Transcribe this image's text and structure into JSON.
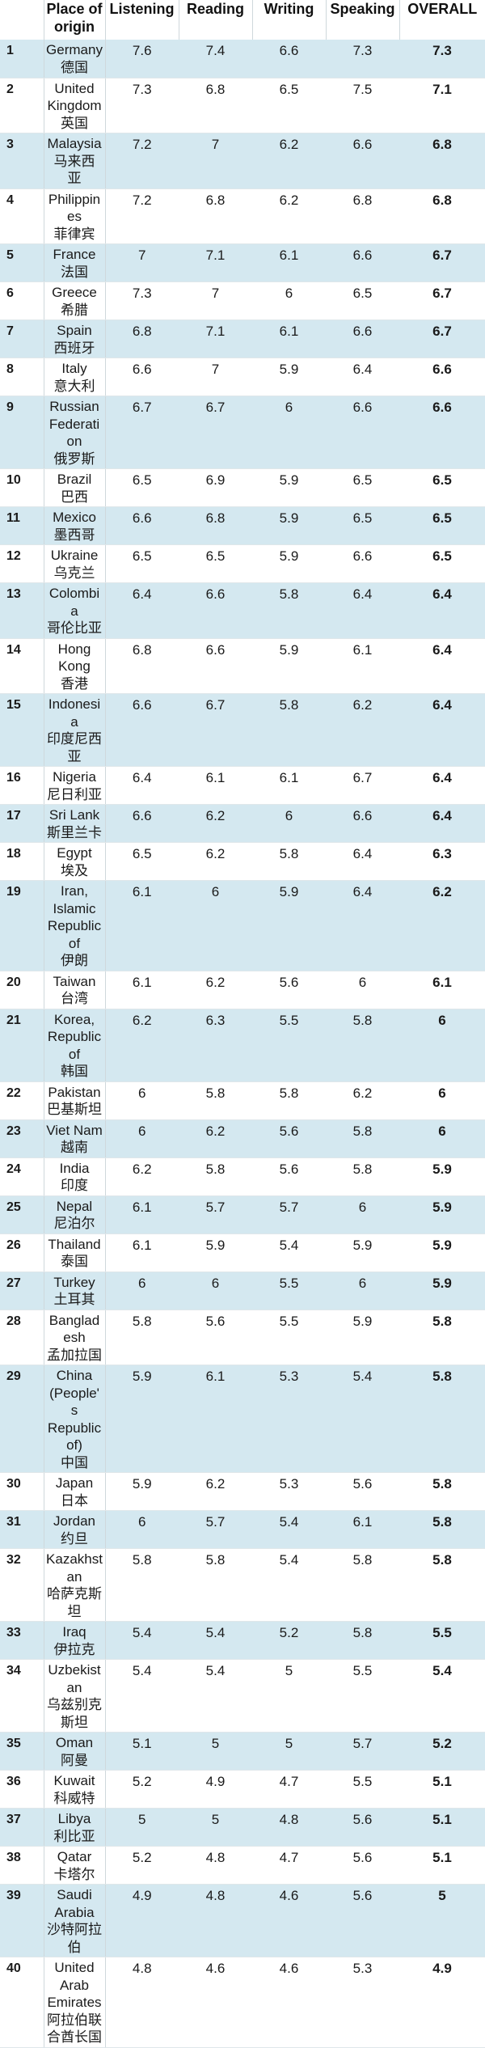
{
  "headers": {
    "rank": "",
    "place": "Place of origin",
    "listening": "Listening",
    "reading": "Reading",
    "writing": "Writing",
    "speaking": "Speaking",
    "overall": "OVERALL"
  },
  "rows": [
    {
      "rank": "1",
      "lines": [
        "Germany",
        "德国"
      ],
      "l": "7.6",
      "r": "7.4",
      "w": "6.6",
      "s": "7.3",
      "o": "7.3"
    },
    {
      "rank": "2",
      "lines": [
        "United",
        "Kingdom",
        "英国"
      ],
      "l": "7.3",
      "r": "6.8",
      "w": "6.5",
      "s": "7.5",
      "o": "7.1"
    },
    {
      "rank": "3",
      "lines": [
        "Malaysia",
        "马来西",
        "亚"
      ],
      "l": "7.2",
      "r": "7",
      "w": "6.2",
      "s": "6.6",
      "o": "6.8"
    },
    {
      "rank": "4",
      "lines": [
        "Philippin",
        "es",
        "菲律宾"
      ],
      "l": "7.2",
      "r": "6.8",
      "w": "6.2",
      "s": "6.8",
      "o": "6.8"
    },
    {
      "rank": "5",
      "lines": [
        "France",
        "法国"
      ],
      "l": "7",
      "r": "7.1",
      "w": "6.1",
      "s": "6.6",
      "o": "6.7"
    },
    {
      "rank": "6",
      "lines": [
        "Greece",
        "希腊"
      ],
      "l": "7.3",
      "r": "7",
      "w": "6",
      "s": "6.5",
      "o": "6.7"
    },
    {
      "rank": "7",
      "lines": [
        "Spain",
        "西班牙"
      ],
      "l": "6.8",
      "r": "7.1",
      "w": "6.1",
      "s": "6.6",
      "o": "6.7"
    },
    {
      "rank": "8",
      "lines": [
        "Italy",
        "意大利"
      ],
      "l": "6.6",
      "r": "7",
      "w": "5.9",
      "s": "6.4",
      "o": "6.6"
    },
    {
      "rank": "9",
      "lines": [
        "Russian",
        "Federati",
        "on",
        "俄罗斯"
      ],
      "l": "6.7",
      "r": "6.7",
      "w": "6",
      "s": "6.6",
      "o": "6.6"
    },
    {
      "rank": "10",
      "lines": [
        "Brazil",
        "巴西"
      ],
      "l": "6.5",
      "r": "6.9",
      "w": "5.9",
      "s": "6.5",
      "o": "6.5"
    },
    {
      "rank": "11",
      "lines": [
        "Mexico",
        "墨西哥"
      ],
      "l": "6.6",
      "r": "6.8",
      "w": "5.9",
      "s": "6.5",
      "o": "6.5"
    },
    {
      "rank": "12",
      "lines": [
        "Ukraine",
        "乌克兰"
      ],
      "l": "6.5",
      "r": "6.5",
      "w": "5.9",
      "s": "6.6",
      "o": "6.5"
    },
    {
      "rank": "13",
      "lines": [
        "Colombi",
        "a",
        "哥伦比亚"
      ],
      "l": "6.4",
      "r": "6.6",
      "w": "5.8",
      "s": "6.4",
      "o": "6.4"
    },
    {
      "rank": "14",
      "lines": [
        "Hong",
        "Kong",
        "香港"
      ],
      "l": "6.8",
      "r": "6.6",
      "w": "5.9",
      "s": "6.1",
      "o": "6.4"
    },
    {
      "rank": "15",
      "lines": [
        "Indonesi",
        "a",
        "印度尼西",
        "亚"
      ],
      "l": "6.6",
      "r": "6.7",
      "w": "5.8",
      "s": "6.2",
      "o": "6.4"
    },
    {
      "rank": "16",
      "lines": [
        "Nigeria",
        "尼日利亚"
      ],
      "l": "6.4",
      "r": "6.1",
      "w": "6.1",
      "s": "6.7",
      "o": "6.4"
    },
    {
      "rank": "17",
      "lines": [
        "Sri Lank",
        "斯里兰卡"
      ],
      "l": "6.6",
      "r": "6.2",
      "w": "6",
      "s": "6.6",
      "o": "6.4"
    },
    {
      "rank": "18",
      "lines": [
        "Egypt",
        "埃及"
      ],
      "l": "6.5",
      "r": "6.2",
      "w": "5.8",
      "s": "6.4",
      "o": "6.3"
    },
    {
      "rank": "19",
      "lines": [
        "Iran,",
        "Islamic",
        "Republic",
        "of",
        "伊朗"
      ],
      "l": "6.1",
      "r": "6",
      "w": "5.9",
      "s": "6.4",
      "o": "6.2"
    },
    {
      "rank": "20",
      "lines": [
        "Taiwan",
        "台湾"
      ],
      "l": "6.1",
      "r": "6.2",
      "w": "5.6",
      "s": "6",
      "o": "6.1"
    },
    {
      "rank": "21",
      "lines": [
        "Korea,",
        "Republic",
        "of",
        "韩国"
      ],
      "l": "6.2",
      "r": "6.3",
      "w": "5.5",
      "s": "5.8",
      "o": "6"
    },
    {
      "rank": "22",
      "lines": [
        "Pakistan",
        "巴基斯坦"
      ],
      "l": "6",
      "r": "5.8",
      "w": "5.8",
      "s": "6.2",
      "o": "6"
    },
    {
      "rank": "23",
      "lines": [
        "Viet Nam",
        "越南"
      ],
      "l": "6",
      "r": "6.2",
      "w": "5.6",
      "s": "5.8",
      "o": "6"
    },
    {
      "rank": "24",
      "lines": [
        "India",
        "印度"
      ],
      "l": "6.2",
      "r": "5.8",
      "w": "5.6",
      "s": "5.8",
      "o": "5.9"
    },
    {
      "rank": "25",
      "lines": [
        "Nepal",
        "尼泊尔"
      ],
      "l": "6.1",
      "r": "5.7",
      "w": "5.7",
      "s": "6",
      "o": "5.9"
    },
    {
      "rank": "26",
      "lines": [
        "Thailand",
        "泰国"
      ],
      "l": "6.1",
      "r": "5.9",
      "w": "5.4",
      "s": "5.9",
      "o": "5.9"
    },
    {
      "rank": "27",
      "lines": [
        "Turkey",
        "土耳其"
      ],
      "l": "6",
      "r": "6",
      "w": "5.5",
      "s": "6",
      "o": "5.9"
    },
    {
      "rank": "28",
      "lines": [
        "Banglad",
        "esh",
        "孟加拉国"
      ],
      "l": "5.8",
      "r": "5.6",
      "w": "5.5",
      "s": "5.9",
      "o": "5.8"
    },
    {
      "rank": "29",
      "lines": [
        "China",
        "(People'",
        "s",
        "Republic",
        "of)",
        "中国"
      ],
      "l": "5.9",
      "r": "6.1",
      "w": "5.3",
      "s": "5.4",
      "o": "5.8"
    },
    {
      "rank": "30",
      "lines": [
        "Japan",
        "日本"
      ],
      "l": "5.9",
      "r": "6.2",
      "w": "5.3",
      "s": "5.6",
      "o": "5.8"
    },
    {
      "rank": "31",
      "lines": [
        "Jordan",
        "约旦"
      ],
      "l": "6",
      "r": "5.7",
      "w": "5.4",
      "s": "6.1",
      "o": "5.8"
    },
    {
      "rank": "32",
      "lines": [
        "Kazakhst",
        "an",
        "哈萨克斯",
        "坦"
      ],
      "l": "5.8",
      "r": "5.8",
      "w": "5.4",
      "s": "5.8",
      "o": "5.8"
    },
    {
      "rank": "33",
      "lines": [
        "Iraq",
        "伊拉克"
      ],
      "l": "5.4",
      "r": "5.4",
      "w": "5.2",
      "s": "5.8",
      "o": "5.5"
    },
    {
      "rank": "34",
      "lines": [
        "Uzbekist",
        "an",
        "乌兹别克",
        "斯坦"
      ],
      "l": "5.4",
      "r": "5.4",
      "w": "5",
      "s": "5.5",
      "o": "5.4"
    },
    {
      "rank": "35",
      "lines": [
        "Oman",
        "阿曼"
      ],
      "l": "5.1",
      "r": "5",
      "w": "5",
      "s": "5.7",
      "o": "5.2"
    },
    {
      "rank": "36",
      "lines": [
        "Kuwait",
        "科威特"
      ],
      "l": "5.2",
      "r": "4.9",
      "w": "4.7",
      "s": "5.5",
      "o": "5.1"
    },
    {
      "rank": "37",
      "lines": [
        "Libya",
        "利比亚"
      ],
      "l": "5",
      "r": "5",
      "w": "4.8",
      "s": "5.6",
      "o": "5.1"
    },
    {
      "rank": "38",
      "lines": [
        "Qatar",
        "卡塔尔"
      ],
      "l": "5.2",
      "r": "4.8",
      "w": "4.7",
      "s": "5.6",
      "o": "5.1"
    },
    {
      "rank": "39",
      "lines": [
        "Saudi",
        "Arabia",
        "沙特阿拉",
        "伯"
      ],
      "l": "4.9",
      "r": "4.8",
      "w": "4.6",
      "s": "5.6",
      "o": "5"
    },
    {
      "rank": "40",
      "lines": [
        "United",
        "Arab",
        "Emirates",
        "阿拉伯联",
        "合酋长国"
      ],
      "l": "4.8",
      "r": "4.6",
      "w": "4.6",
      "s": "5.3",
      "o": "4.9"
    }
  ]
}
